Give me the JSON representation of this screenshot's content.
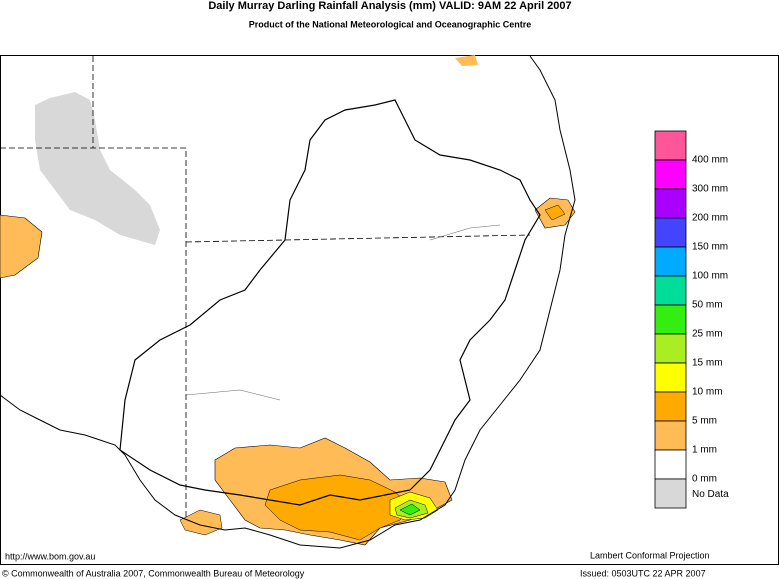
{
  "header": {
    "title": "Daily Murray Darling Rainfall Analysis (mm)   VALID: 9AM 22 April 2007",
    "subtitle": "Product of the National Meteorological and Oceanographic Centre"
  },
  "legend": {
    "colors": [
      "#ff5599",
      "#ff00ff",
      "#aa00ff",
      "#4444ff",
      "#00aaff",
      "#00dd99",
      "#33ee11",
      "#aaee22",
      "#ffff00",
      "#ffaa00",
      "#ffbb55",
      "#ffffff",
      "#d8d8d8"
    ],
    "labels": [
      "400 mm",
      "300 mm",
      "200 mm",
      "150 mm",
      "100 mm",
      "50 mm",
      "25 mm",
      "15 mm",
      "10 mm",
      "5 mm",
      "1 mm",
      "0 mm"
    ],
    "no_data": "No Data"
  },
  "footer": {
    "website": "http://www.bom.gov.au",
    "projection": "Lambert Conformal Projection",
    "copyright": "© Commonwealth of Australia 2007, Commonwealth Bureau of Meteorology",
    "issued": "Issued: 0503UTC 22 APR 2007"
  }
}
